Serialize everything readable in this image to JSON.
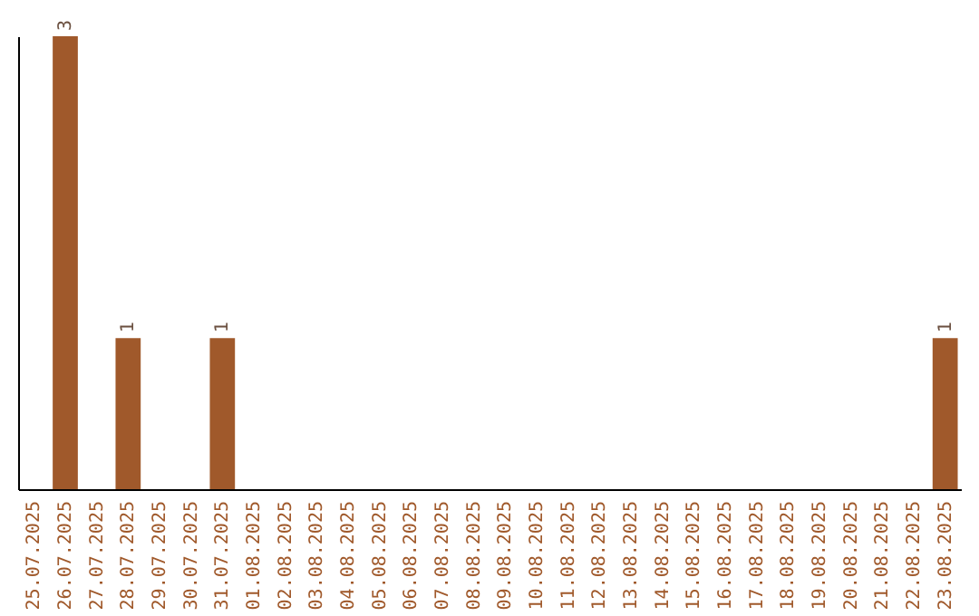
{
  "chart_data": {
    "type": "bar",
    "categories": [
      "25.07.2025",
      "26.07.2025",
      "27.07.2025",
      "28.07.2025",
      "29.07.2025",
      "30.07.2025",
      "31.07.2025",
      "01.08.2025",
      "02.08.2025",
      "03.08.2025",
      "04.08.2025",
      "05.08.2025",
      "06.08.2025",
      "07.08.2025",
      "08.08.2025",
      "09.08.2025",
      "10.08.2025",
      "11.08.2025",
      "12.08.2025",
      "13.08.2025",
      "14.08.2025",
      "15.08.2025",
      "16.08.2025",
      "17.08.2025",
      "18.08.2025",
      "19.08.2025",
      "20.08.2025",
      "21.08.2025",
      "22.08.2025",
      "23.08.2025"
    ],
    "values": [
      0,
      3,
      0,
      1,
      0,
      0,
      1,
      0,
      0,
      0,
      0,
      0,
      0,
      0,
      0,
      0,
      0,
      0,
      0,
      0,
      0,
      0,
      0,
      0,
      0,
      0,
      0,
      0,
      0,
      1
    ],
    "value_labels": [
      null,
      "3",
      null,
      "1",
      null,
      null,
      "1",
      null,
      null,
      null,
      null,
      null,
      null,
      null,
      null,
      null,
      null,
      null,
      null,
      null,
      null,
      null,
      null,
      null,
      null,
      null,
      null,
      null,
      null,
      "1"
    ],
    "color": "#a0592b"
  }
}
